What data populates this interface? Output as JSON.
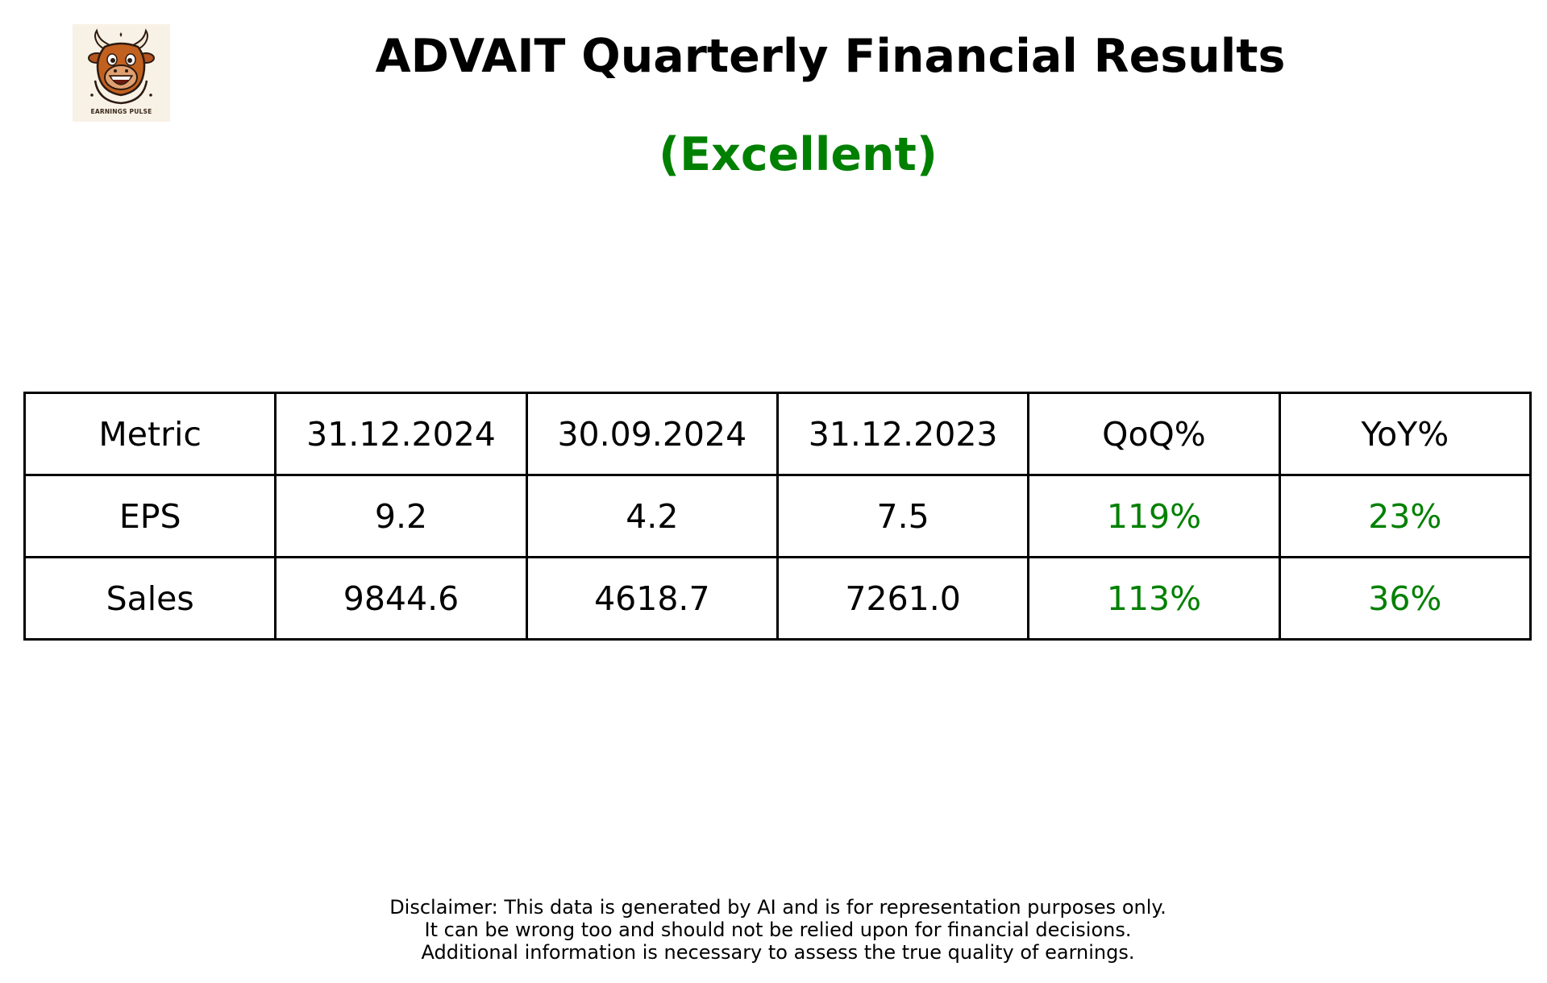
{
  "logo": {
    "text": "EARNINGS PULSE",
    "icon": "bull-mascot-icon",
    "background": "#f8f1e6"
  },
  "title": "ADVAIT Quarterly Financial Results",
  "rating": "(Excellent)",
  "colors": {
    "rating": "#008000",
    "positive": "#008000",
    "text": "#000000"
  },
  "table": {
    "headers": [
      "Metric",
      "31.12.2024",
      "30.09.2024",
      "31.12.2023",
      "QoQ%",
      "YoY%"
    ],
    "rows": [
      {
        "metric": "EPS",
        "q1": "9.2",
        "q2": "4.2",
        "q3": "7.5",
        "qoq": "119%",
        "yoy": "23%"
      },
      {
        "metric": "Sales",
        "q1": "9844.6",
        "q2": "4618.7",
        "q3": "7261.0",
        "qoq": "113%",
        "yoy": "36%"
      }
    ]
  },
  "disclaimer": [
    "Disclaimer: This data is generated by AI and is for representation purposes only.",
    "It can be wrong too and should not be relied upon for financial decisions.",
    "Additional information is necessary to assess the true quality of earnings."
  ]
}
